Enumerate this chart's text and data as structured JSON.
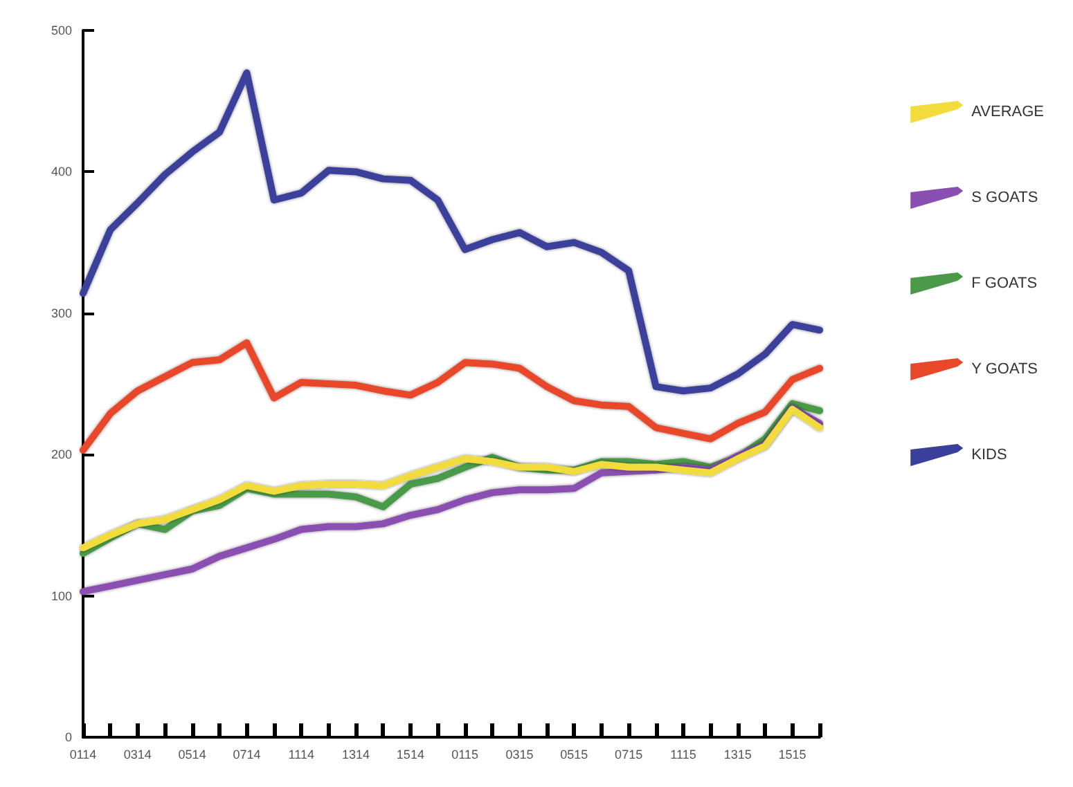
{
  "chart_data": {
    "type": "line",
    "categories": [
      "0114",
      null,
      "0314",
      null,
      "0514",
      null,
      "0714",
      null,
      "1114",
      null,
      "1314",
      null,
      "1514",
      null,
      "0115",
      null,
      "0315",
      null,
      "0515",
      null,
      "0715",
      null,
      "1115",
      null,
      "1315",
      null,
      "1515",
      null
    ],
    "ylim": [
      0,
      500
    ],
    "yticks": [
      0,
      100,
      200,
      300,
      400,
      500
    ],
    "grid": false,
    "legend": "right",
    "marker": "none",
    "line_style": "solid",
    "series": [
      {
        "name": "AVERAGE",
        "color": "#f2dc3c",
        "values": [
          134,
          143,
          151,
          154,
          161,
          168,
          178,
          174,
          178,
          179,
          179,
          178,
          185,
          191,
          197,
          195,
          191,
          191,
          188,
          193,
          191,
          191,
          189,
          187,
          197,
          206,
          232,
          219
        ]
      },
      {
        "name": "S GOATS",
        "color": "#8a4fb0",
        "values": [
          103,
          107,
          111,
          115,
          119,
          128,
          134,
          140,
          147,
          149,
          149,
          151,
          157,
          161,
          168,
          173,
          175,
          175,
          176,
          187,
          188,
          189,
          191,
          189,
          199,
          207,
          233,
          222
        ]
      },
      {
        "name": "F GOATS",
        "color": "#4a9a4a",
        "values": [
          130,
          141,
          151,
          147,
          160,
          164,
          176,
          172,
          172,
          172,
          170,
          163,
          179,
          183,
          191,
          198,
          191,
          189,
          189,
          195,
          195,
          193,
          195,
          191,
          198,
          211,
          236,
          231
        ]
      },
      {
        "name": "Y GOATS",
        "color": "#e8472a",
        "values": [
          203,
          229,
          245,
          255,
          265,
          267,
          279,
          240,
          251,
          250,
          249,
          245,
          242,
          251,
          265,
          264,
          261,
          248,
          238,
          235,
          234,
          219,
          215,
          211,
          222,
          230,
          253,
          261
        ]
      },
      {
        "name": "KIDS",
        "color": "#3a3f9a",
        "values": [
          314,
          359,
          378,
          398,
          414,
          428,
          470,
          380,
          385,
          401,
          400,
          395,
          394,
          380,
          345,
          352,
          357,
          347,
          350,
          343,
          330,
          248,
          245,
          247,
          257,
          271,
          292,
          288
        ]
      }
    ]
  }
}
